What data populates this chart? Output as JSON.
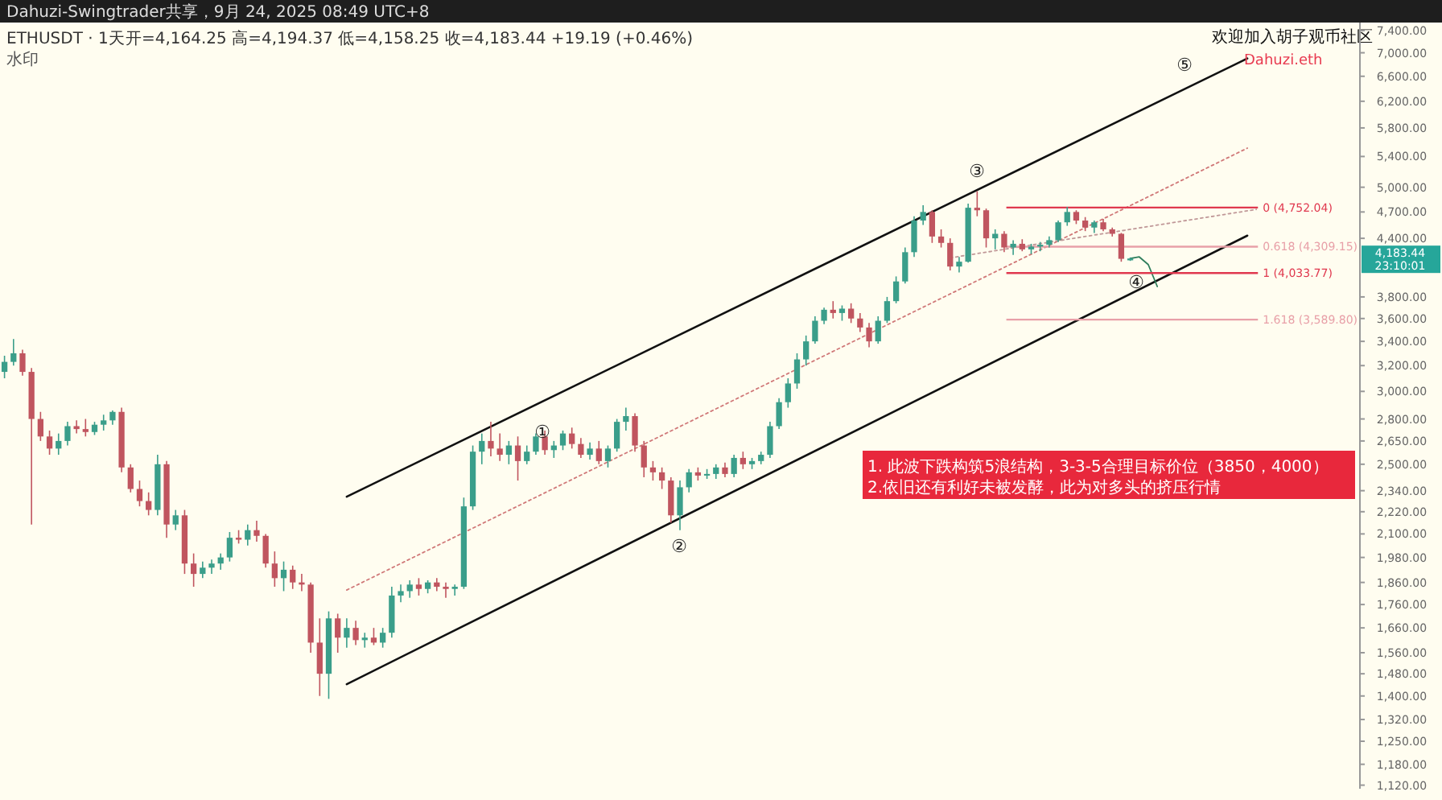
{
  "chart_data": {
    "type": "candlestick",
    "title": "ETHUSDT · 1天",
    "subtitle": "开=4,164.25 高=4,194.37 低=4,158.25 收=4,183.44 +19.19 (+0.46%)",
    "log": "y",
    "tick_labels": "y",
    "categories": [
      null,
      null,
      null,
      null,
      null,
      null,
      null,
      null,
      null,
      null,
      null,
      null,
      null,
      null,
      null,
      null,
      null,
      null,
      null,
      null,
      null,
      null,
      null,
      null,
      null,
      null,
      null,
      null,
      null,
      null,
      null,
      null,
      null,
      null,
      null,
      null,
      null,
      null,
      null,
      null,
      null,
      null,
      null,
      null,
      null,
      null,
      null,
      null,
      null,
      null,
      null,
      null,
      null,
      null,
      null,
      null,
      null,
      null,
      null,
      null,
      null,
      null,
      null,
      null,
      null,
      null,
      null,
      null,
      null,
      null,
      null,
      null,
      null,
      null,
      null,
      null,
      null,
      null,
      null,
      null,
      null,
      null,
      null,
      null,
      null,
      null,
      null,
      null,
      null,
      null,
      null,
      null,
      null,
      null,
      null,
      null,
      null,
      null,
      null,
      null,
      null,
      null,
      null,
      null,
      null,
      null,
      null,
      null,
      null,
      null,
      null,
      null,
      null,
      null,
      null,
      null,
      null,
      null,
      null,
      null,
      null,
      null,
      null,
      null,
      null,
      null,
      null,
      null,
      null,
      null,
      null,
      null,
      null,
      null,
      null,
      null,
      null,
      null,
      null,
      null,
      null,
      null,
      null,
      null,
      null,
      null,
      null,
      null,
      null,
      null,
      null
    ],
    "ohlc": [
      [
        3150,
        3280,
        3100,
        3230
      ],
      [
        3230,
        3420,
        3200,
        3300
      ],
      [
        3300,
        3330,
        3120,
        3150
      ],
      [
        3150,
        3180,
        2150,
        2800
      ],
      [
        2800,
        2850,
        2650,
        2680
      ],
      [
        2680,
        2720,
        2560,
        2600
      ],
      [
        2600,
        2700,
        2560,
        2650
      ],
      [
        2650,
        2780,
        2620,
        2750
      ],
      [
        2750,
        2790,
        2700,
        2730
      ],
      [
        2730,
        2800,
        2680,
        2710
      ],
      [
        2710,
        2780,
        2690,
        2760
      ],
      [
        2760,
        2830,
        2720,
        2790
      ],
      [
        2790,
        2860,
        2760,
        2850
      ],
      [
        2850,
        2880,
        2450,
        2480
      ],
      [
        2480,
        2500,
        2330,
        2350
      ],
      [
        2350,
        2400,
        2250,
        2280
      ],
      [
        2280,
        2330,
        2200,
        2230
      ],
      [
        2230,
        2560,
        2200,
        2500
      ],
      [
        2500,
        2520,
        2080,
        2150
      ],
      [
        2150,
        2230,
        2120,
        2200
      ],
      [
        2200,
        2230,
        1900,
        1950
      ],
      [
        1950,
        2000,
        1840,
        1900
      ],
      [
        1900,
        1960,
        1880,
        1930
      ],
      [
        1930,
        1970,
        1900,
        1950
      ],
      [
        1950,
        2000,
        1920,
        1980
      ],
      [
        1980,
        2110,
        1960,
        2080
      ],
      [
        2080,
        2120,
        2050,
        2070
      ],
      [
        2070,
        2150,
        2040,
        2120
      ],
      [
        2120,
        2170,
        2060,
        2090
      ],
      [
        2090,
        2100,
        1930,
        1950
      ],
      [
        1950,
        2010,
        1840,
        1880
      ],
      [
        1880,
        1960,
        1820,
        1920
      ],
      [
        1920,
        1940,
        1830,
        1860
      ],
      [
        1860,
        1900,
        1820,
        1850
      ],
      [
        1850,
        1860,
        1560,
        1600
      ],
      [
        1600,
        1700,
        1400,
        1480
      ],
      [
        1480,
        1730,
        1390,
        1700
      ],
      [
        1700,
        1720,
        1560,
        1620
      ],
      [
        1620,
        1700,
        1580,
        1660
      ],
      [
        1660,
        1690,
        1590,
        1610
      ],
      [
        1610,
        1640,
        1580,
        1620
      ],
      [
        1620,
        1660,
        1590,
        1600
      ],
      [
        1600,
        1660,
        1580,
        1640
      ],
      [
        1640,
        1840,
        1620,
        1800
      ],
      [
        1800,
        1850,
        1770,
        1820
      ],
      [
        1820,
        1870,
        1790,
        1850
      ],
      [
        1850,
        1880,
        1800,
        1830
      ],
      [
        1830,
        1870,
        1810,
        1860
      ],
      [
        1860,
        1880,
        1820,
        1840
      ],
      [
        1840,
        1860,
        1790,
        1830
      ],
      [
        1830,
        1850,
        1800,
        1840
      ],
      [
        1840,
        2300,
        1830,
        2250
      ],
      [
        2250,
        2620,
        2230,
        2580
      ],
      [
        2580,
        2700,
        2500,
        2650
      ],
      [
        2650,
        2780,
        2550,
        2600
      ],
      [
        2600,
        2700,
        2520,
        2560
      ],
      [
        2560,
        2650,
        2500,
        2620
      ],
      [
        2620,
        2680,
        2400,
        2520
      ],
      [
        2520,
        2620,
        2500,
        2580
      ],
      [
        2580,
        2700,
        2560,
        2680
      ],
      [
        2680,
        2720,
        2560,
        2590
      ],
      [
        2590,
        2650,
        2540,
        2620
      ],
      [
        2620,
        2720,
        2590,
        2700
      ],
      [
        2700,
        2740,
        2600,
        2630
      ],
      [
        2630,
        2670,
        2540,
        2560
      ],
      [
        2560,
        2640,
        2530,
        2600
      ],
      [
        2600,
        2650,
        2500,
        2520
      ],
      [
        2520,
        2620,
        2480,
        2600
      ],
      [
        2600,
        2800,
        2580,
        2780
      ],
      [
        2780,
        2880,
        2720,
        2820
      ],
      [
        2820,
        2840,
        2580,
        2620
      ],
      [
        2620,
        2650,
        2420,
        2480
      ],
      [
        2480,
        2520,
        2400,
        2450
      ],
      [
        2450,
        2480,
        2350,
        2400
      ],
      [
        2400,
        2420,
        2160,
        2200
      ],
      [
        2200,
        2400,
        2120,
        2360
      ],
      [
        2360,
        2470,
        2330,
        2450
      ],
      [
        2450,
        2480,
        2400,
        2430
      ],
      [
        2430,
        2470,
        2410,
        2440
      ],
      [
        2440,
        2500,
        2410,
        2480
      ],
      [
        2480,
        2510,
        2420,
        2440
      ],
      [
        2440,
        2560,
        2420,
        2540
      ],
      [
        2540,
        2580,
        2470,
        2500
      ],
      [
        2500,
        2540,
        2470,
        2520
      ],
      [
        2520,
        2580,
        2500,
        2560
      ],
      [
        2560,
        2780,
        2540,
        2750
      ],
      [
        2750,
        2950,
        2730,
        2920
      ],
      [
        2920,
        3100,
        2880,
        3060
      ],
      [
        3060,
        3300,
        3020,
        3250
      ],
      [
        3250,
        3450,
        3200,
        3400
      ],
      [
        3400,
        3620,
        3380,
        3580
      ],
      [
        3580,
        3700,
        3550,
        3680
      ],
      [
        3680,
        3760,
        3600,
        3650
      ],
      [
        3650,
        3720,
        3580,
        3690
      ],
      [
        3690,
        3740,
        3560,
        3600
      ],
      [
        3600,
        3650,
        3480,
        3520
      ],
      [
        3520,
        3560,
        3350,
        3400
      ],
      [
        3400,
        3620,
        3380,
        3580
      ],
      [
        3580,
        3800,
        3560,
        3760
      ],
      [
        3760,
        4000,
        3740,
        3950
      ],
      [
        3950,
        4300,
        3930,
        4250
      ],
      [
        4250,
        4650,
        4200,
        4600
      ],
      [
        4600,
        4780,
        4550,
        4700
      ],
      [
        4700,
        4720,
        4350,
        4420
      ],
      [
        4420,
        4500,
        4300,
        4350
      ],
      [
        4350,
        4400,
        4060,
        4100
      ],
      [
        4100,
        4200,
        4040,
        4150
      ],
      [
        4150,
        4800,
        4140,
        4750
      ],
      [
        4750,
        4950,
        4650,
        4720
      ],
      [
        4720,
        4740,
        4300,
        4400
      ],
      [
        4400,
        4500,
        4280,
        4450
      ],
      [
        4450,
        4480,
        4250,
        4300
      ],
      [
        4300,
        4380,
        4220,
        4340
      ],
      [
        4340,
        4390,
        4260,
        4280
      ],
      [
        4280,
        4340,
        4230,
        4310
      ],
      [
        4310,
        4360,
        4260,
        4330
      ],
      [
        4330,
        4420,
        4300,
        4380
      ],
      [
        4380,
        4600,
        4360,
        4580
      ],
      [
        4580,
        4760,
        4540,
        4700
      ],
      [
        4700,
        4720,
        4560,
        4600
      ],
      [
        4600,
        4640,
        4480,
        4520
      ],
      [
        4520,
        4600,
        4460,
        4580
      ],
      [
        4580,
        4620,
        4480,
        4500
      ],
      [
        4500,
        4520,
        4420,
        4450
      ],
      [
        4450,
        4460,
        4150,
        4180
      ],
      [
        4164.25,
        4194.37,
        4158.25,
        4183.44
      ],
      null,
      null,
      null,
      null,
      null,
      null,
      null,
      null,
      null,
      null,
      null,
      null,
      null,
      null,
      null,
      null,
      null,
      null,
      null,
      null,
      null,
      null,
      null,
      null,
      null
    ],
    "series": [
      {
        "type": "line",
        "color": "#111111",
        "line_style": "solid",
        "values": [
          null,
          null,
          null,
          null,
          null,
          null,
          null,
          null,
          null,
          null,
          null,
          null,
          null,
          null,
          null,
          null,
          null,
          null,
          null,
          null,
          null,
          null,
          null,
          null,
          null,
          null,
          null,
          null,
          null,
          null,
          null,
          null,
          null,
          null,
          null,
          null,
          null,
          null,
          2305,
          null,
          null,
          null,
          null,
          null,
          null,
          null,
          null,
          null,
          null,
          null,
          null,
          null,
          null,
          null,
          null,
          null,
          null,
          null,
          null,
          null,
          null,
          null,
          null,
          null,
          null,
          null,
          null,
          null,
          null,
          null,
          null,
          null,
          null,
          null,
          null,
          null,
          null,
          null,
          null,
          null,
          null,
          null,
          null,
          null,
          null,
          null,
          null,
          null,
          null,
          null,
          null,
          null,
          null,
          null,
          null,
          null,
          null,
          null,
          null,
          null,
          null,
          null,
          null,
          null,
          null,
          null,
          null,
          null,
          null,
          null,
          null,
          null,
          null,
          null,
          null,
          null,
          null,
          null,
          null,
          null,
          null,
          null,
          null,
          null,
          null,
          null,
          null,
          null,
          null,
          null,
          null,
          null,
          null,
          null,
          null,
          null,
          null,
          null,
          6900,
          null,
          null,
          null,
          null,
          null,
          null,
          null,
          null,
          null,
          null,
          null,
          null
        ]
      },
      {
        "type": "line",
        "color": "#111111",
        "line_style": "solid",
        "values": [
          null,
          null,
          null,
          null,
          null,
          null,
          null,
          null,
          null,
          null,
          null,
          null,
          null,
          null,
          null,
          null,
          null,
          null,
          null,
          null,
          null,
          null,
          null,
          null,
          null,
          null,
          null,
          null,
          null,
          null,
          null,
          null,
          null,
          null,
          null,
          null,
          null,
          null,
          1442,
          null,
          null,
          null,
          null,
          null,
          null,
          null,
          null,
          null,
          null,
          null,
          null,
          null,
          null,
          null,
          null,
          null,
          null,
          null,
          null,
          null,
          null,
          null,
          null,
          null,
          null,
          null,
          null,
          null,
          null,
          null,
          null,
          null,
          null,
          null,
          null,
          null,
          null,
          null,
          null,
          null,
          null,
          null,
          null,
          null,
          null,
          null,
          null,
          null,
          null,
          null,
          null,
          null,
          null,
          null,
          null,
          null,
          null,
          null,
          null,
          null,
          null,
          null,
          null,
          null,
          null,
          null,
          null,
          null,
          null,
          null,
          null,
          null,
          null,
          null,
          null,
          null,
          null,
          null,
          null,
          null,
          null,
          null,
          null,
          null,
          null,
          null,
          null,
          null,
          null,
          null,
          null,
          null,
          null,
          null,
          null,
          null,
          null,
          null,
          4430,
          null,
          null,
          null,
          null,
          null,
          null,
          null,
          null,
          null,
          null,
          null,
          null
        ]
      },
      {
        "type": "line",
        "color": "#d07878",
        "line_style": "dotted",
        "values": [
          null,
          null,
          null,
          null,
          null,
          null,
          null,
          null,
          null,
          null,
          null,
          null,
          null,
          null,
          null,
          null,
          null,
          null,
          null,
          null,
          null,
          null,
          null,
          null,
          null,
          null,
          null,
          null,
          null,
          null,
          null,
          null,
          null,
          null,
          null,
          null,
          null,
          null,
          1825,
          null,
          null,
          null,
          null,
          null,
          null,
          null,
          null,
          null,
          null,
          null,
          null,
          null,
          null,
          null,
          null,
          null,
          null,
          null,
          null,
          null,
          null,
          null,
          null,
          null,
          null,
          null,
          null,
          null,
          null,
          null,
          null,
          null,
          null,
          null,
          null,
          null,
          null,
          null,
          null,
          null,
          null,
          null,
          null,
          null,
          null,
          null,
          null,
          null,
          null,
          null,
          null,
          null,
          null,
          null,
          null,
          null,
          null,
          null,
          null,
          null,
          null,
          null,
          null,
          null,
          null,
          null,
          null,
          null,
          null,
          null,
          null,
          null,
          null,
          null,
          null,
          null,
          null,
          null,
          null,
          null,
          null,
          null,
          null,
          null,
          null,
          null,
          null,
          null,
          null,
          null,
          null,
          null,
          null,
          null,
          null,
          null,
          null,
          null,
          5514,
          null,
          null,
          null,
          null,
          null,
          null,
          null,
          null,
          null,
          null,
          null,
          null
        ]
      },
      {
        "type": "line",
        "color": "#c09898",
        "line_style": "dotted",
        "values": [
          null,
          null,
          null,
          null,
          null,
          null,
          null,
          null,
          null,
          null,
          null,
          null,
          null,
          null,
          null,
          null,
          null,
          null,
          null,
          null,
          null,
          null,
          null,
          null,
          null,
          null,
          null,
          null,
          null,
          null,
          null,
          null,
          null,
          null,
          null,
          null,
          null,
          null,
          null,
          null,
          null,
          null,
          null,
          null,
          null,
          null,
          null,
          null,
          null,
          null,
          null,
          null,
          null,
          null,
          null,
          null,
          null,
          null,
          null,
          null,
          null,
          null,
          null,
          null,
          null,
          null,
          null,
          null,
          null,
          null,
          null,
          null,
          null,
          null,
          null,
          null,
          null,
          null,
          null,
          null,
          null,
          null,
          null,
          null,
          null,
          null,
          null,
          null,
          null,
          null,
          null,
          null,
          null,
          null,
          null,
          null,
          null,
          null,
          null,
          null,
          null,
          null,
          null,
          null,
          null,
          4190,
          null,
          null,
          null,
          null,
          null,
          null,
          null,
          null,
          null,
          null,
          null,
          null,
          null,
          null,
          null,
          null,
          null,
          null,
          null,
          null,
          null,
          null,
          null,
          null,
          null,
          null,
          null,
          null,
          null,
          null,
          null,
          null,
          null,
          4730,
          null,
          null,
          null,
          null,
          null,
          null,
          null,
          null,
          null,
          null,
          null
        ]
      },
      {
        "type": "line",
        "color": "#2e7d5b",
        "line_style": "solid",
        "values": [
          null,
          null,
          null,
          null,
          null,
          null,
          null,
          null,
          null,
          null,
          null,
          null,
          null,
          null,
          null,
          null,
          null,
          null,
          null,
          null,
          null,
          null,
          null,
          null,
          null,
          null,
          null,
          null,
          null,
          null,
          null,
          null,
          null,
          null,
          null,
          null,
          null,
          null,
          null,
          null,
          null,
          null,
          null,
          null,
          null,
          null,
          null,
          null,
          null,
          null,
          null,
          null,
          null,
          null,
          null,
          null,
          null,
          null,
          null,
          null,
          null,
          null,
          null,
          null,
          null,
          null,
          null,
          null,
          null,
          null,
          null,
          null,
          null,
          null,
          null,
          null,
          null,
          null,
          null,
          null,
          null,
          null,
          null,
          null,
          null,
          null,
          null,
          null,
          null,
          null,
          null,
          null,
          null,
          null,
          null,
          null,
          null,
          null,
          null,
          null,
          null,
          null,
          null,
          null,
          null,
          null,
          null,
          null,
          null,
          null,
          null,
          null,
          null,
          null,
          null,
          null,
          null,
          null,
          null,
          null,
          null,
          null,
          null,
          null,
          null,
          4183,
          4200,
          4120,
          3900,
          null,
          null,
          null,
          null,
          null,
          null,
          null,
          null,
          null,
          null,
          null,
          null,
          null,
          null,
          null,
          null,
          null,
          null,
          null,
          null,
          null,
          null
        ]
      }
    ],
    "ref_lines": [
      {
        "axis": "y",
        "value": 4752.04,
        "label": "0 (4,752.04)",
        "color": "#e0394f"
      },
      {
        "axis": "y",
        "value": 4309.15,
        "label": "0.618 (4,309.15)",
        "color": "#e8a0a8"
      },
      {
        "axis": "y",
        "value": 4033.77,
        "label": "1 (4,033.77)",
        "color": "#e0394f"
      },
      {
        "axis": "y",
        "value": 3589.8,
        "label": "1.618 (3,589.80)",
        "color": "#e8a0a8"
      }
    ],
    "ylim": [
      1110,
      7550
    ],
    "yticks": [
      {
        "value": 7400,
        "label": "7,400.00"
      },
      {
        "value": 7000,
        "label": "7,000.00"
      },
      {
        "value": 6600,
        "label": "6,600.00"
      },
      {
        "value": 6200,
        "label": "6,200.00"
      },
      {
        "value": 5800,
        "label": "5,800.00"
      },
      {
        "value": 5400,
        "label": "5,400.00"
      },
      {
        "value": 5000,
        "label": "5,000.00"
      },
      {
        "value": 4700,
        "label": "4,700.00"
      },
      {
        "value": 4400,
        "label": "4,400.00"
      },
      {
        "value": 3800,
        "label": "3,800.00"
      },
      {
        "value": 3600,
        "label": "3,600.00"
      },
      {
        "value": 3400,
        "label": "3,400.00"
      },
      {
        "value": 3200,
        "label": "3,200.00"
      },
      {
        "value": 3000,
        "label": "3,000.00"
      },
      {
        "value": 2800,
        "label": "2,800.00"
      },
      {
        "value": 2650,
        "label": "2,650.00"
      },
      {
        "value": 2500,
        "label": "2,500.00"
      },
      {
        "value": 2340,
        "label": "2,340.00"
      },
      {
        "value": 2220,
        "label": "2,220.00"
      },
      {
        "value": 2100,
        "label": "2,100.00"
      },
      {
        "value": 1980,
        "label": "1,980.00"
      },
      {
        "value": 1860,
        "label": "1,860.00"
      },
      {
        "value": 1760,
        "label": "1,760.00"
      },
      {
        "value": 1660,
        "label": "1,660.00"
      },
      {
        "value": 1560,
        "label": "1,560.00"
      },
      {
        "value": 1480,
        "label": "1,480.00"
      },
      {
        "value": 1400,
        "label": "1,400.00"
      },
      {
        "value": 1320,
        "label": "1,320.00"
      },
      {
        "value": 1250,
        "label": "1,250.00"
      },
      {
        "value": 1180,
        "label": "1,180.00"
      },
      {
        "value": 1120,
        "label": "1,120.00"
      }
    ],
    "annotations": [
      "①",
      "②",
      "③",
      "④",
      "⑤",
      "水印",
      "欢迎加入胡子观币社区",
      "Dahuzi.eth",
      "1. 此波下跌构筑5浪结构，3-3-5合理目标价位（3850，4000）",
      "2.依旧还有利好未被发酵，此为对多头的挤压行情",
      "Dahuzi-Swingtrader共享，9月 24, 2025 08:49 UTC+8",
      "4,183.44",
      "23:10:01"
    ]
  }
}
